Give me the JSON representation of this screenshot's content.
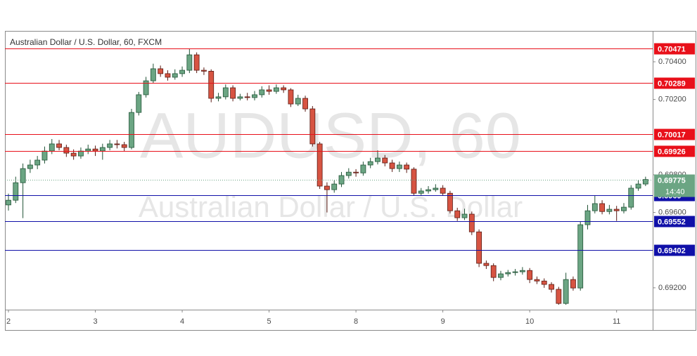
{
  "chart_data": {
    "type": "candlestick",
    "title": "Australian Dollar / U.S. Dollar, 60, FXCM",
    "watermark": "AUDUSD, 60",
    "watermark_subtitle": "Australian Dollar / U.S. Dollar",
    "categories": [
      "2",
      null,
      null,
      null,
      null,
      null,
      null,
      null,
      null,
      null,
      null,
      null,
      "3",
      null,
      null,
      null,
      null,
      null,
      null,
      null,
      null,
      null,
      null,
      null,
      "4",
      null,
      null,
      null,
      null,
      null,
      null,
      null,
      null,
      null,
      null,
      null,
      "5",
      null,
      null,
      null,
      null,
      null,
      null,
      null,
      null,
      null,
      null,
      null,
      "8",
      null,
      null,
      null,
      null,
      null,
      null,
      null,
      null,
      null,
      null,
      null,
      "9",
      null,
      null,
      null,
      null,
      null,
      null,
      null,
      null,
      null,
      null,
      null,
      "10",
      null,
      null,
      null,
      null,
      null,
      null,
      null,
      null,
      null,
      null,
      null,
      "11",
      null,
      null,
      null,
      null
    ],
    "open": [
      0.6964,
      0.69665,
      0.69758,
      0.69833,
      0.69852,
      0.69878,
      0.69926,
      0.69964,
      0.69945,
      0.69915,
      0.699,
      0.69926,
      0.69937,
      0.69926,
      0.69945,
      0.69964,
      0.6996,
      0.69945,
      0.70131,
      0.70225,
      0.70299,
      0.70363,
      0.70337,
      0.70318,
      0.70337,
      0.70355,
      0.70437,
      0.70355,
      0.7035,
      0.70206,
      0.70214,
      0.70262,
      0.70206,
      0.70214,
      0.7021,
      0.70225,
      0.70251,
      0.70243,
      0.70262,
      0.70251,
      0.70176,
      0.70206,
      0.7015,
      0.69964,
      0.6974,
      0.69721,
      0.69751,
      0.69796,
      0.69814,
      0.6981,
      0.69852,
      0.6987,
      0.69889,
      0.69863,
      0.69833,
      0.69852,
      0.6983,
      0.69702,
      0.69714,
      0.69721,
      0.69729,
      0.69702,
      0.69609,
      0.69572,
      0.69591,
      0.69497,
      0.6933,
      0.69318,
      0.69255,
      0.69274,
      0.69281,
      0.69285,
      0.69292,
      0.69244,
      0.69236,
      0.69218,
      0.69192,
      0.69117,
      0.69244,
      0.69199,
      0.69535,
      0.69609,
      0.69647,
      0.69605,
      0.69617,
      0.69609,
      0.69628,
      0.69729,
      0.69751
    ],
    "high": [
      0.697,
      0.6979,
      0.6986,
      0.6988,
      0.699,
      0.6995,
      0.6999,
      0.69985,
      0.6996,
      0.69935,
      0.69945,
      0.6996,
      0.69955,
      0.69965,
      0.69985,
      0.69985,
      0.69975,
      0.7015,
      0.7024,
      0.7032,
      0.7039,
      0.7038,
      0.70355,
      0.7036,
      0.70375,
      0.70471,
      0.7045,
      0.7037,
      0.7036,
      0.70235,
      0.7028,
      0.70275,
      0.7023,
      0.70235,
      0.70245,
      0.7027,
      0.70275,
      0.7028,
      0.70275,
      0.7026,
      0.70225,
      0.7022,
      0.70165,
      0.69975,
      0.6976,
      0.6977,
      0.69815,
      0.69835,
      0.6983,
      0.6987,
      0.6989,
      0.6993,
      0.69905,
      0.6988,
      0.6987,
      0.69865,
      0.6984,
      0.6973,
      0.6974,
      0.6975,
      0.69745,
      0.69715,
      0.69625,
      0.6962,
      0.69605,
      0.6951,
      0.69345,
      0.6933,
      0.6929,
      0.69295,
      0.693,
      0.6931,
      0.69305,
      0.6926,
      0.6925,
      0.6923,
      0.69205,
      0.6928,
      0.6926,
      0.6955,
      0.6964,
      0.6969,
      0.69665,
      0.6964,
      0.69635,
      0.6965,
      0.69745,
      0.6977,
      0.6979
    ],
    "low": [
      0.6961,
      0.6965,
      0.6957,
      0.6981,
      0.6983,
      0.6986,
      0.6991,
      0.6993,
      0.69895,
      0.6988,
      0.69885,
      0.6991,
      0.699,
      0.6988,
      0.6993,
      0.6994,
      0.69925,
      0.69935,
      0.70115,
      0.7021,
      0.70285,
      0.7032,
      0.703,
      0.70305,
      0.7032,
      0.7034,
      0.7034,
      0.7033,
      0.70185,
      0.7019,
      0.702,
      0.7019,
      0.70195,
      0.70195,
      0.70195,
      0.7021,
      0.70225,
      0.7023,
      0.70235,
      0.7016,
      0.70165,
      0.70135,
      0.6995,
      0.69725,
      0.696,
      0.69705,
      0.69735,
      0.6978,
      0.6979,
      0.69795,
      0.69835,
      0.69855,
      0.69845,
      0.69815,
      0.69815,
      0.6981,
      0.6969,
      0.6969,
      0.697,
      0.6971,
      0.6969,
      0.69595,
      0.69555,
      0.6956,
      0.6948,
      0.6931,
      0.693,
      0.69235,
      0.6924,
      0.6926,
      0.69265,
      0.6927,
      0.69225,
      0.6922,
      0.692,
      0.69175,
      0.6911,
      0.6911,
      0.69185,
      0.69185,
      0.6951,
      0.69595,
      0.6959,
      0.6959,
      0.69555,
      0.69595,
      0.69615,
      0.69715,
      0.6974
    ],
    "close": [
      0.69665,
      0.69758,
      0.69833,
      0.69852,
      0.69878,
      0.69926,
      0.69964,
      0.69945,
      0.69915,
      0.699,
      0.69926,
      0.69937,
      0.69926,
      0.69945,
      0.69964,
      0.6996,
      0.69945,
      0.70131,
      0.70225,
      0.70299,
      0.70363,
      0.70337,
      0.70318,
      0.70337,
      0.70355,
      0.70437,
      0.70355,
      0.7035,
      0.70206,
      0.70214,
      0.70262,
      0.70206,
      0.70214,
      0.7021,
      0.70225,
      0.70251,
      0.70243,
      0.70262,
      0.70251,
      0.70176,
      0.70206,
      0.7015,
      0.69964,
      0.6974,
      0.69721,
      0.69751,
      0.69796,
      0.69814,
      0.6981,
      0.69852,
      0.6987,
      0.69889,
      0.69863,
      0.69833,
      0.69852,
      0.6983,
      0.69702,
      0.69714,
      0.69721,
      0.69729,
      0.69702,
      0.69609,
      0.69572,
      0.69591,
      0.69497,
      0.6933,
      0.69318,
      0.69255,
      0.69274,
      0.69281,
      0.69285,
      0.69292,
      0.69244,
      0.69236,
      0.69218,
      0.69192,
      0.69117,
      0.69244,
      0.69199,
      0.69535,
      0.69609,
      0.69647,
      0.69605,
      0.69617,
      0.69609,
      0.69628,
      0.69729,
      0.69751,
      0.69775
    ],
    "up_color": "#6ba583",
    "down_color": "#d75442",
    "ylim": [
      0.69084,
      0.70564
    ],
    "yticks": [
      {
        "value": 0.704,
        "label": "0.70400"
      },
      {
        "value": 0.702,
        "label": "0.70200"
      },
      {
        "value": 0.698,
        "label": "0.69800"
      },
      {
        "value": 0.696,
        "label": "0.69600"
      },
      {
        "value": 0.692,
        "label": "0.69200"
      }
    ],
    "levels": [
      {
        "value": 0.70471,
        "color": "#e8101a"
      },
      {
        "value": 0.70289,
        "color": "#e8101a"
      },
      {
        "value": 0.70017,
        "color": "#e8101a"
      },
      {
        "value": 0.69926,
        "color": "#e8101a"
      },
      {
        "value": 0.6969,
        "color": "#1010a8"
      },
      {
        "value": 0.69552,
        "color": "#1010a8"
      },
      {
        "value": 0.69402,
        "color": "#1010a8"
      }
    ],
    "last_price": 0.69775,
    "last_price_color": "#6ba583",
    "countdown": "14:40"
  }
}
